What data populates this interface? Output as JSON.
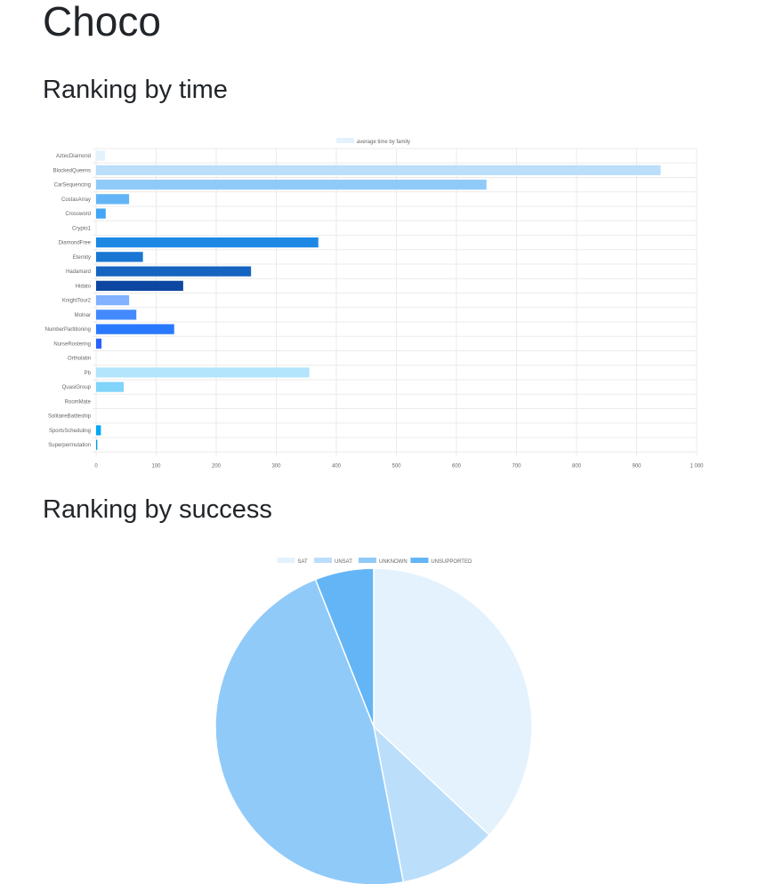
{
  "page": {
    "title": "Choco"
  },
  "sections": {
    "time_title": "Ranking by time",
    "success_title": "Ranking by success"
  },
  "chart_data": [
    {
      "type": "bar",
      "orientation": "horizontal",
      "series": [
        {
          "name": "average time by family",
          "values": [
            15,
            940,
            650,
            55,
            16,
            0,
            370,
            78,
            258,
            145,
            55,
            67,
            130,
            9,
            1,
            355,
            46,
            0,
            0,
            8,
            2
          ]
        }
      ],
      "categories": [
        "AztecDiamond",
        "BlockedQueens",
        "CarSequencing",
        "CostasArray",
        "Crossword",
        "Crypto1",
        "DiamondFree",
        "Eternity",
        "Hadamard",
        "Hidato",
        "KnightTour2",
        "Molnar",
        "NumberPartitioning",
        "NurseRostering",
        "Ortholatin",
        "Pb",
        "QuasiGroup",
        "RoomMate",
        "SolitaireBattleship",
        "SportsScheduling",
        "Superpermutation"
      ],
      "bar_colors": [
        "#e3f2fd",
        "#bbdefb",
        "#90caf9",
        "#64b5f6",
        "#42a5f5",
        "#2196f3",
        "#1e88e5",
        "#1976d2",
        "#1565c0",
        "#0d47a1",
        "#82b1ff",
        "#448aff",
        "#2979ff",
        "#2962ff",
        "#e1f5fe",
        "#b3e5fc",
        "#81d4fa",
        "#4fc3f7",
        "#29b6f6",
        "#03a9f4",
        "#039be5"
      ],
      "xlim": [
        0,
        1000
      ],
      "x_ticks": [
        "0",
        "100",
        "200",
        "300",
        "400",
        "500",
        "600",
        "700",
        "800",
        "900",
        "1 000"
      ],
      "grid": true,
      "legend_position": "top"
    },
    {
      "type": "pie",
      "labels": [
        "SAT",
        "UNSAT",
        "UNKNOWN",
        "UNSUPPORTED"
      ],
      "values": [
        37,
        10,
        47,
        6
      ],
      "colors": [
        "#e3f2fd",
        "#bbdefb",
        "#90caf9",
        "#64b5f6"
      ],
      "legend_position": "top"
    }
  ]
}
